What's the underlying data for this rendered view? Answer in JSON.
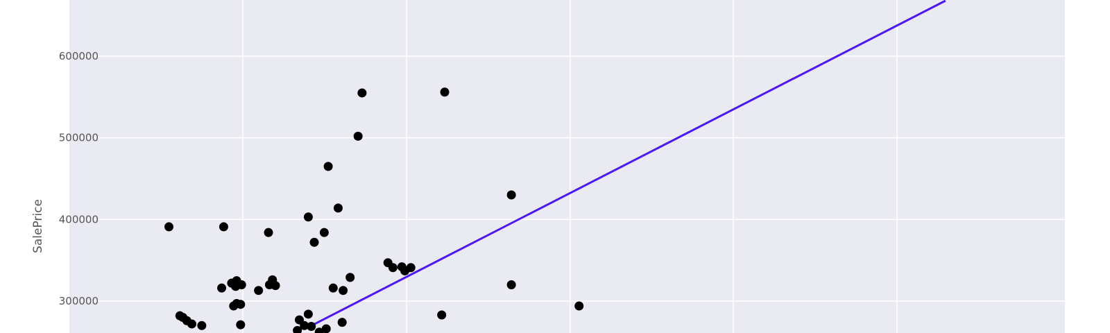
{
  "chart_data": {
    "type": "scatter",
    "title": "",
    "xlabel": "",
    "ylabel": "SalePrice",
    "grid": true,
    "legend": false,
    "colors": {
      "background": "#eaeaf2",
      "grid": "#ffffff",
      "points": "#000000",
      "regression_line": "#4b17ff"
    },
    "yticks": [
      300000,
      400000,
      500000,
      600000
    ],
    "ytick_labels": [
      "300000",
      "400000",
      "500000",
      "600000"
    ],
    "ylim": [
      260000,
      668000
    ],
    "series": [
      {
        "kind": "points",
        "x": [
          0.1,
          0.155,
          0.2,
          0.153,
          0.163,
          0.167,
          0.168,
          0.173,
          0.19,
          0.204,
          0.201,
          0.207,
          0.172,
          0.172,
          0.168,
          0.111,
          0.114,
          0.118,
          0.123,
          0.133,
          0.165,
          0.24,
          0.246,
          0.256,
          0.26,
          0.27,
          0.265,
          0.275,
          0.231,
          0.236,
          0.24,
          0.274,
          0.258,
          0.229,
          0.243,
          0.251,
          0.282,
          0.29,
          0.294,
          0.32,
          0.325,
          0.343,
          0.334,
          0.337,
          0.444,
          0.444,
          0.374,
          0.512,
          0.377
        ],
        "y": [
          391000,
          391000,
          384000,
          316000,
          322000,
          318000,
          325000,
          320000,
          313000,
          326000,
          320000,
          319000,
          296000,
          271000,
          297000,
          282000,
          280000,
          276000,
          272000,
          270000,
          294000,
          403000,
          372000,
          384000,
          465000,
          414000,
          316000,
          313000,
          277000,
          270000,
          284000,
          274000,
          266000,
          264000,
          269000,
          262000,
          329000,
          502000,
          555000,
          347000,
          341000,
          341000,
          342000,
          337000,
          430000,
          320000,
          283000,
          294000,
          556000
        ],
        "count_note_hidden": null
      },
      {
        "kind": "regression-line",
        "x": [
          0.24,
          0.88
        ],
        "y": [
          268000,
          668000
        ]
      }
    ]
  }
}
